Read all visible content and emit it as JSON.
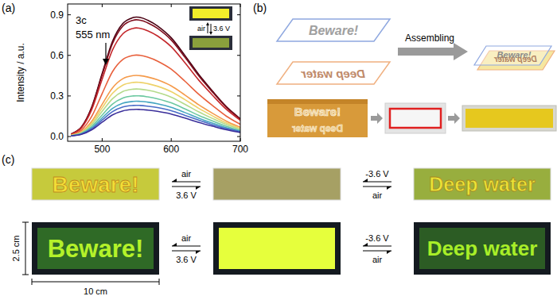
{
  "chart_data": {
    "type": "line",
    "title": "(a)",
    "ylabel": "Intensity / a.u.",
    "annotations": [
      "3c",
      "555 nm"
    ],
    "x": [
      455,
      470,
      485,
      500,
      515,
      530,
      545,
      555,
      565,
      580,
      600,
      620,
      640,
      660,
      680,
      700
    ],
    "xlim": [
      450,
      700
    ],
    "xticks": [
      500,
      600,
      700
    ],
    "ylim": [
      -0.035,
      0.98
    ],
    "yticks": [
      {
        "value": 0,
        "label": "0.0"
      },
      0.3,
      0.6,
      0.9
    ],
    "grid": false,
    "series": [
      {
        "color": "#4a0012",
        "values": [
          0.018,
          0.07,
          0.22,
          0.466,
          0.704,
          0.836,
          0.88,
          0.88,
          0.862,
          0.818,
          0.73,
          0.598,
          0.458,
          0.334,
          0.22,
          0.132
        ]
      },
      {
        "color": "#7e0c1c",
        "values": [
          0.017,
          0.069,
          0.215,
          0.456,
          0.688,
          0.817,
          0.86,
          0.86,
          0.843,
          0.8,
          0.714,
          0.585,
          0.447,
          0.327,
          0.215,
          0.129
        ]
      },
      {
        "color": "#c4282c",
        "values": [
          0.016,
          0.064,
          0.2,
          0.424,
          0.64,
          0.76,
          0.8,
          0.8,
          0.784,
          0.744,
          0.664,
          0.544,
          0.416,
          0.304,
          0.2,
          0.12
        ]
      },
      {
        "color": "#e8603c",
        "values": [
          0.012,
          0.048,
          0.15,
          0.318,
          0.48,
          0.57,
          0.6,
          0.6,
          0.588,
          0.558,
          0.498,
          0.408,
          0.312,
          0.228,
          0.15,
          0.09
        ]
      },
      {
        "color": "#f59a4a",
        "values": [
          0.009,
          0.036,
          0.113,
          0.239,
          0.36,
          0.428,
          0.45,
          0.45,
          0.441,
          0.419,
          0.374,
          0.306,
          0.234,
          0.171,
          0.113,
          0.068
        ]
      },
      {
        "color": "#eed26a",
        "values": [
          0.008,
          0.032,
          0.1,
          0.212,
          0.32,
          0.38,
          0.4,
          0.4,
          0.392,
          0.372,
          0.332,
          0.272,
          0.208,
          0.152,
          0.1,
          0.06
        ]
      },
      {
        "color": "#b4da8a",
        "values": [
          0.007,
          0.028,
          0.088,
          0.186,
          0.28,
          0.333,
          0.35,
          0.35,
          0.343,
          0.326,
          0.291,
          0.238,
          0.182,
          0.133,
          0.088,
          0.053
        ]
      },
      {
        "color": "#6cc8a0",
        "values": [
          0.006,
          0.024,
          0.075,
          0.159,
          0.24,
          0.285,
          0.3,
          0.3,
          0.294,
          0.279,
          0.249,
          0.204,
          0.156,
          0.114,
          0.075,
          0.045
        ]
      },
      {
        "color": "#46a6c2",
        "values": [
          0.005,
          0.021,
          0.065,
          0.138,
          0.208,
          0.247,
          0.26,
          0.26,
          0.255,
          0.242,
          0.216,
          0.177,
          0.135,
          0.099,
          0.065,
          0.039
        ]
      },
      {
        "color": "#4a6cc8",
        "values": [
          0.005,
          0.018,
          0.058,
          0.122,
          0.184,
          0.219,
          0.23,
          0.23,
          0.225,
          0.214,
          0.191,
          0.156,
          0.12,
          0.087,
          0.058,
          0.035
        ]
      },
      {
        "color": "#3a2e9a",
        "values": [
          0.004,
          0.016,
          0.05,
          0.106,
          0.16,
          0.19,
          0.2,
          0.2,
          0.196,
          0.186,
          0.166,
          0.136,
          0.104,
          0.076,
          0.05,
          0.03
        ]
      }
    ]
  },
  "panel_a_inset": {
    "labels": [
      "air",
      "3.6 V"
    ]
  },
  "panel_b": {
    "label": "(b)",
    "design": {
      "top": "Beware!",
      "bottom": "Deep water"
    },
    "arrow_label": "Assembling",
    "assembled": {
      "top": "Beware!",
      "bottom": "Deep water"
    },
    "photo": {
      "top": "Beware!",
      "bottom": "Deep water"
    }
  },
  "panel_c": {
    "label": "(c)",
    "rows": [
      {
        "left": "Beware!",
        "right": "Deep water",
        "arrows_left": [
          "air",
          "3.6 V"
        ],
        "arrows_right": [
          "-3.6 V",
          "air"
        ]
      },
      {
        "left": "Beware!",
        "right": "Deep water",
        "arrows_left": [
          "air",
          "3.6 V"
        ],
        "arrows_right": [
          "-3.6 V",
          "air"
        ]
      }
    ],
    "height": "2.5 cm",
    "width": "10 cm"
  }
}
